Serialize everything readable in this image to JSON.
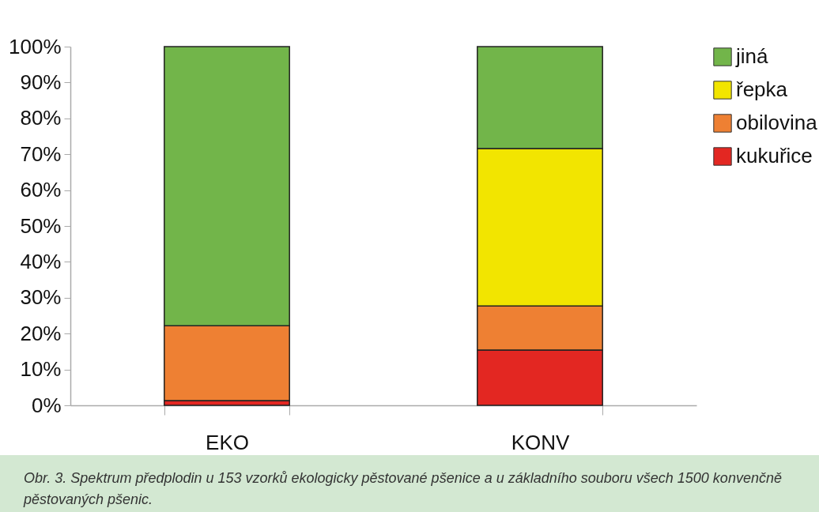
{
  "chart_data": {
    "type": "bar",
    "stacked": true,
    "categories": [
      "EKO",
      "KONV"
    ],
    "series": [
      {
        "name": "kukuřice",
        "color": "#e32722",
        "values": [
          1.3,
          15.4
        ]
      },
      {
        "name": "obilovina",
        "color": "#ee8033",
        "values": [
          20.9,
          12.3
        ]
      },
      {
        "name": "řepka",
        "color": "#f2e500",
        "values": [
          0,
          43.9
        ]
      },
      {
        "name": "jiná",
        "color": "#72b54a",
        "values": [
          77.8,
          28.4
        ]
      }
    ],
    "ylim": [
      0,
      100
    ],
    "yticks": [
      {
        "value": 0,
        "label": "0%"
      },
      {
        "value": 10,
        "label": "10%"
      },
      {
        "value": 20,
        "label": "20%"
      },
      {
        "value": 30,
        "label": "30%"
      },
      {
        "value": 40,
        "label": "40%"
      },
      {
        "value": 50,
        "label": "50%"
      },
      {
        "value": 60,
        "label": "60%"
      },
      {
        "value": 70,
        "label": "70%"
      },
      {
        "value": 80,
        "label": "80%"
      },
      {
        "value": 90,
        "label": "90%"
      },
      {
        "value": 100,
        "label": "100%"
      }
    ],
    "legend": "right",
    "annotations": [
      "Obr. 3. Spektrum předplodin u 153 vzorků ekologicky pěstované pšenice a u základního souboru všech 1500 konvenčně pěstovaných pšenic."
    ]
  }
}
